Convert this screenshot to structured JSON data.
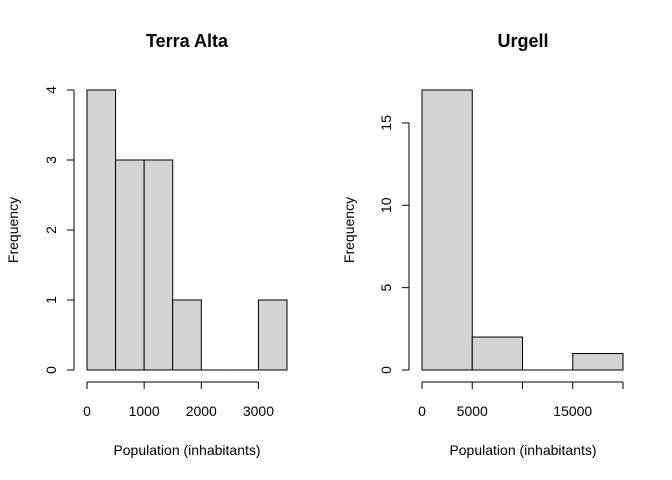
{
  "chart_data": [
    {
      "type": "bar",
      "subtype": "histogram",
      "title": "Terra Alta",
      "xlabel": "Population (inhabitants)",
      "ylabel": "Frequency",
      "bin_edges": [
        0,
        500,
        1000,
        1500,
        2000,
        2500,
        3000,
        3500
      ],
      "values": [
        4,
        3,
        3,
        1,
        0,
        0,
        1
      ],
      "xticks": [
        0,
        1000,
        2000,
        3000
      ],
      "xtick_labels": [
        "0",
        "1000",
        "2000",
        "3000"
      ],
      "yticks": [
        0,
        1,
        2,
        3,
        4
      ],
      "ytick_labels": [
        "0",
        "1",
        "2",
        "3",
        "4"
      ],
      "xlim": [
        0,
        3500
      ],
      "ylim": [
        0,
        4
      ],
      "bar_color": "#d3d3d3",
      "grid": false
    },
    {
      "type": "bar",
      "subtype": "histogram",
      "title": "Urgell",
      "xlabel": "Population (inhabitants)",
      "ylabel": "Frequency",
      "bin_edges": [
        0,
        5000,
        10000,
        15000,
        20000
      ],
      "values": [
        17,
        2,
        0,
        1
      ],
      "xticks": [
        0,
        5000,
        10000,
        15000,
        20000
      ],
      "xtick_labels": [
        "0",
        "5000",
        "",
        "15000",
        ""
      ],
      "yticks": [
        0,
        5,
        10,
        15
      ],
      "ytick_labels": [
        "0",
        "5",
        "10",
        "15"
      ],
      "xlim": [
        0,
        20000
      ],
      "ylim": [
        0,
        17
      ],
      "bar_color": "#d3d3d3",
      "grid": false
    }
  ]
}
